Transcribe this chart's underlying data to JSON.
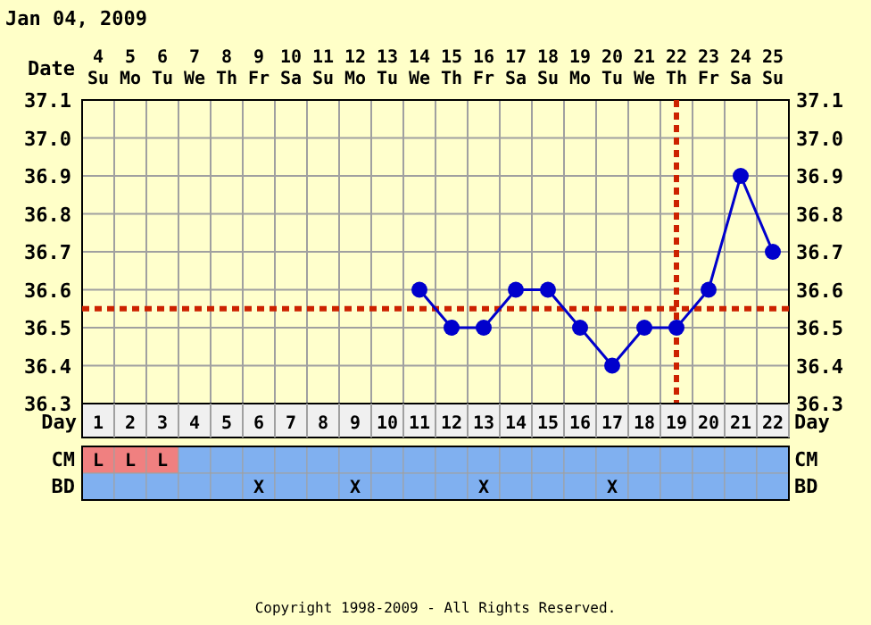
{
  "chart_data": [
    {
      "type": "line",
      "title": "Jan 04, 2009",
      "xlabel": "Day",
      "x2label": "Date",
      "x": [
        11,
        12,
        13,
        14,
        15,
        16,
        17,
        18,
        19,
        20,
        21,
        22
      ],
      "series": [
        {
          "color": "#0000cc",
          "values": [
            36.6,
            36.5,
            36.5,
            36.6,
            36.6,
            36.5,
            36.4,
            36.5,
            36.5,
            36.6,
            36.9,
            36.7
          ]
        }
      ],
      "xlim": [
        0.5,
        22.5
      ],
      "xticks": [
        1,
        2,
        3,
        4,
        5,
        6,
        7,
        8,
        9,
        10,
        11,
        12,
        13,
        14,
        15,
        16,
        17,
        18,
        19,
        20,
        21,
        22
      ],
      "x2lim": [
        3.5,
        25.5
      ],
      "x2ticks": [
        {
          "value": 4,
          "label": "4 Su"
        },
        {
          "value": 5,
          "label": "5 Mo"
        },
        {
          "value": 6,
          "label": "6 Tu"
        },
        {
          "value": 7,
          "label": "7 We"
        },
        {
          "value": 8,
          "label": "8 Th"
        },
        {
          "value": 9,
          "label": "9 Fr"
        },
        {
          "value": 10,
          "label": "10 Sa"
        },
        {
          "value": 11,
          "label": "11 Su"
        },
        {
          "value": 12,
          "label": "12 Mo"
        },
        {
          "value": 13,
          "label": "13 Tu"
        },
        {
          "value": 14,
          "label": "14 We"
        },
        {
          "value": 15,
          "label": "15 Th"
        },
        {
          "value": 16,
          "label": "16 Fr"
        },
        {
          "value": 17,
          "label": "17 Sa"
        },
        {
          "value": 18,
          "label": "18 Su"
        },
        {
          "value": 19,
          "label": "19 Mo"
        },
        {
          "value": 20,
          "label": "20 Tu"
        },
        {
          "value": 21,
          "label": "21 We"
        },
        {
          "value": 22,
          "label": "22 Th"
        },
        {
          "value": 23,
          "label": "23 Fr"
        },
        {
          "value": 24,
          "label": "24 Sa"
        },
        {
          "value": 25,
          "label": "25 Su"
        }
      ],
      "ylim": [
        36.3,
        37.1
      ],
      "yticks": [
        {
          "value": 36.3,
          "label": "36.3"
        },
        {
          "value": 36.4,
          "label": "36.4"
        },
        {
          "value": 36.5,
          "label": "36.5"
        },
        {
          "value": 36.6,
          "label": "36.6"
        },
        {
          "value": 36.7,
          "label": "36.7"
        },
        {
          "value": 36.8,
          "label": "36.8"
        },
        {
          "value": 36.9,
          "label": "36.9"
        },
        {
          "value": 37.0,
          "label": "37.0"
        },
        {
          "value": 37.1,
          "label": "37.1"
        }
      ],
      "y2lim": [
        36.3,
        37.1
      ],
      "y2ticks": [
        {
          "value": 36.3,
          "label": "36.3"
        },
        {
          "value": 36.4,
          "label": "36.4"
        },
        {
          "value": 36.5,
          "label": "36.5"
        },
        {
          "value": 36.6,
          "label": "36.6"
        },
        {
          "value": 36.7,
          "label": "36.7"
        },
        {
          "value": 36.8,
          "label": "36.8"
        },
        {
          "value": 36.9,
          "label": "36.9"
        },
        {
          "value": 37.0,
          "label": "37.0"
        },
        {
          "value": 37.1,
          "label": "37.1"
        }
      ],
      "ref_lines": [
        {
          "axis": "y",
          "value": 36.55,
          "color": "#cc2200",
          "line_style": "dotted"
        },
        {
          "axis": "x",
          "value": 19,
          "color": "#cc2200",
          "line_style": "dotted"
        }
      ],
      "grid": true,
      "marker": "circle",
      "line_style": "solid",
      "annotations": [
        "Copyright 1998-2009 - All Rights Reserved."
      ]
    },
    {
      "type": "heatmap",
      "categories": [
        null,
        null,
        null,
        null,
        null,
        null,
        null,
        null,
        null,
        null,
        null,
        null,
        null,
        null,
        null,
        null,
        null,
        null,
        null,
        null,
        null,
        null
      ],
      "y_categories": [
        "CM",
        "BD"
      ],
      "y2_categories": [
        "CM",
        "BD"
      ],
      "cells": [
        [
          null,
          null,
          null,
          null,
          null,
          null,
          null,
          null,
          null,
          null,
          null,
          null,
          null,
          null,
          null,
          null,
          null,
          null,
          null,
          null,
          null,
          null
        ],
        [
          null,
          null,
          null,
          null,
          null,
          null,
          null,
          null,
          null,
          null,
          null,
          null,
          null,
          null,
          null,
          null,
          null,
          null,
          null,
          null,
          null,
          null
        ]
      ],
      "cell_labels": [
        [
          "L",
          "L",
          "L",
          null,
          null,
          null,
          null,
          null,
          null,
          null,
          null,
          null,
          null,
          null,
          null,
          null,
          null,
          null,
          null,
          null,
          null,
          null
        ],
        [
          null,
          null,
          null,
          null,
          null,
          "X",
          null,
          null,
          "X",
          null,
          null,
          null,
          "X",
          null,
          null,
          null,
          "X",
          null,
          null,
          null,
          null,
          null
        ]
      ]
    }
  ]
}
